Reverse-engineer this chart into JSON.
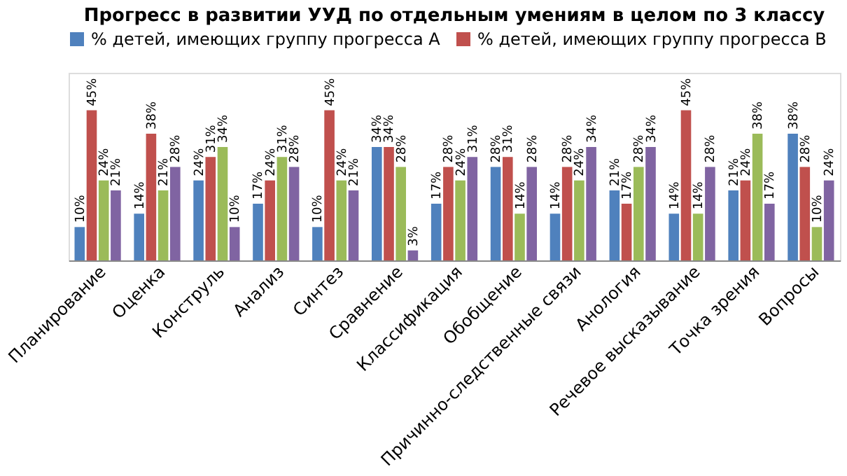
{
  "chart_data": {
    "type": "bar",
    "title": "Прогресс в развитии УУД по отдельным умениям в целом по 3 классу",
    "categories": [
      "Планирование",
      "Оценка",
      "Конструль",
      "Анализ",
      "Синтез",
      "Сравнение",
      "Классификация",
      "Обобщение",
      "Причинно-следственные связи",
      "Анология",
      "Речевое высказывание",
      "Точка зрения",
      "Вопросы"
    ],
    "series": [
      {
        "name": "% детей, имеющих группу прогресса А",
        "color": "#4f81bd",
        "values": [
          10,
          14,
          24,
          17,
          10,
          34,
          17,
          28,
          14,
          21,
          14,
          21,
          38
        ],
        "value_labels": [
          "10%",
          "14%",
          "24%",
          "17%",
          "10%",
          "34%",
          "17%",
          "28%",
          "14%",
          "21%",
          "14%",
          "21%",
          "38%"
        ]
      },
      {
        "name": "% детей, имеющих группу прогресса В",
        "color": "#c0504d",
        "values": [
          45,
          38,
          31,
          24,
          45,
          34,
          28,
          31,
          28,
          17,
          45,
          24,
          28
        ],
        "value_labels": [
          "45%",
          "38%",
          "31%",
          "24%",
          "45%",
          "34%",
          "28%",
          "31%",
          "28%",
          "17%",
          "45%",
          "24%",
          "28%"
        ]
      },
      {
        "color": "#9bbb59",
        "values": [
          24,
          21,
          34,
          31,
          24,
          28,
          24,
          14,
          24,
          28,
          14,
          38,
          10
        ],
        "value_labels": [
          "24%",
          "21%",
          "34%",
          "31%",
          "24%",
          "28%",
          "24%",
          "14%",
          "24%",
          "28%",
          "14%",
          "38%",
          "10%"
        ]
      },
      {
        "color": "#8064a2",
        "values": [
          21,
          28,
          10,
          28,
          21,
          3,
          31,
          28,
          34,
          34,
          28,
          17,
          24
        ],
        "value_labels": [
          "21%",
          "28%",
          "10%",
          "28%",
          "21%",
          "3%",
          "31%",
          "28%",
          "34%",
          "34%",
          "28%",
          "17%",
          "24%"
        ]
      }
    ],
    "legend": "top",
    "grid": false
  }
}
